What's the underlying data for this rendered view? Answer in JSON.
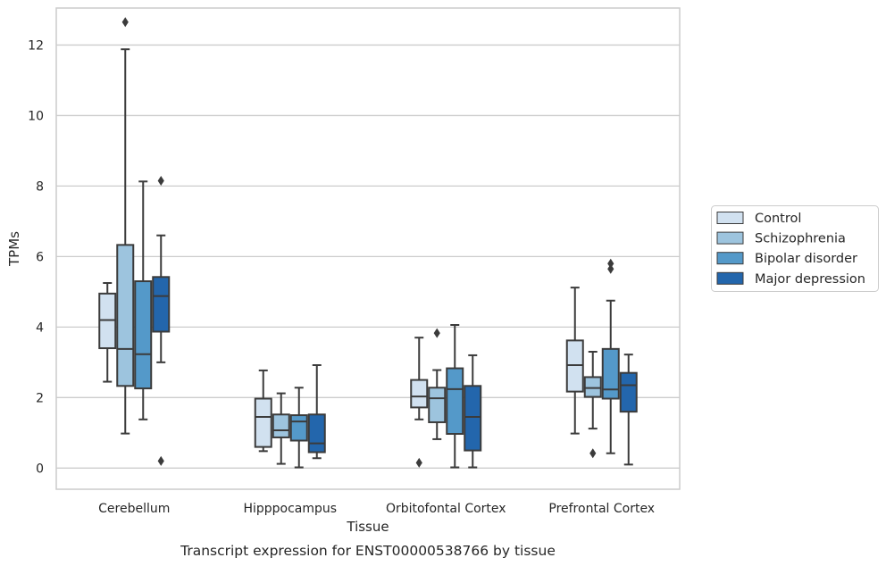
{
  "chart_data": {
    "type": "box",
    "title": "Transcript expression for ENST00000538766 by tissue",
    "xlabel": "Tissue",
    "ylabel": "TPMs",
    "ylim": [
      -0.6,
      13.05
    ],
    "yticks": [
      0,
      2,
      4,
      6,
      8,
      10,
      12
    ],
    "grid": true,
    "legend_position": "right",
    "categories": [
      "Cerebellum",
      "Hipppocampus",
      "Orbitofontal Cortex",
      "Prefrontal Cortex"
    ],
    "series": [
      {
        "name": "Control",
        "color": "#d1e1f0",
        "boxes": [
          {
            "whislo": 2.45,
            "q1": 3.4,
            "med": 4.2,
            "q3": 4.95,
            "whishi": 5.25,
            "fliers": []
          },
          {
            "whislo": 0.48,
            "q1": 0.6,
            "med": 1.45,
            "q3": 1.97,
            "whishi": 2.77,
            "fliers": []
          },
          {
            "whislo": 1.38,
            "q1": 1.72,
            "med": 2.03,
            "q3": 2.5,
            "whishi": 3.7,
            "fliers": [
              0.15
            ]
          },
          {
            "whislo": 0.98,
            "q1": 2.17,
            "med": 2.92,
            "q3": 3.62,
            "whishi": 5.12,
            "fliers": []
          }
        ]
      },
      {
        "name": "Schizophrenia",
        "color": "#9dc4de",
        "boxes": [
          {
            "whislo": 0.98,
            "q1": 2.33,
            "med": 3.38,
            "q3": 6.33,
            "whishi": 11.88,
            "fliers": [
              12.65
            ]
          },
          {
            "whislo": 0.12,
            "q1": 0.87,
            "med": 1.07,
            "q3": 1.52,
            "whishi": 2.12,
            "fliers": []
          },
          {
            "whislo": 0.82,
            "q1": 1.3,
            "med": 1.98,
            "q3": 2.28,
            "whishi": 2.78,
            "fliers": [
              3.83
            ]
          },
          {
            "whislo": 1.12,
            "q1": 2.02,
            "med": 2.27,
            "q3": 2.58,
            "whishi": 3.3,
            "fliers": [
              0.42
            ]
          }
        ]
      },
      {
        "name": "Bipolar disorder",
        "color": "#5499c9",
        "boxes": [
          {
            "whislo": 1.38,
            "q1": 2.26,
            "med": 3.23,
            "q3": 5.3,
            "whishi": 8.13,
            "fliers": []
          },
          {
            "whislo": 0.02,
            "q1": 0.78,
            "med": 1.32,
            "q3": 1.5,
            "whishi": 2.28,
            "fliers": []
          },
          {
            "whislo": 0.02,
            "q1": 0.97,
            "med": 2.24,
            "q3": 2.83,
            "whishi": 4.06,
            "fliers": []
          },
          {
            "whislo": 0.42,
            "q1": 1.97,
            "med": 2.23,
            "q3": 3.38,
            "whishi": 4.75,
            "fliers": [
              5.65,
              5.8
            ]
          }
        ]
      },
      {
        "name": "Major depression",
        "color": "#2366ac",
        "boxes": [
          {
            "whislo": 3.0,
            "q1": 3.87,
            "med": 4.88,
            "q3": 5.42,
            "whishi": 6.6,
            "fliers": [
              8.15,
              0.2
            ]
          },
          {
            "whislo": 0.28,
            "q1": 0.45,
            "med": 0.7,
            "q3": 1.52,
            "whishi": 2.92,
            "fliers": []
          },
          {
            "whislo": 0.02,
            "q1": 0.5,
            "med": 1.45,
            "q3": 2.33,
            "whishi": 3.2,
            "fliers": []
          },
          {
            "whislo": 0.1,
            "q1": 1.6,
            "med": 2.35,
            "q3": 2.7,
            "whishi": 3.22,
            "fliers": []
          }
        ]
      }
    ]
  }
}
